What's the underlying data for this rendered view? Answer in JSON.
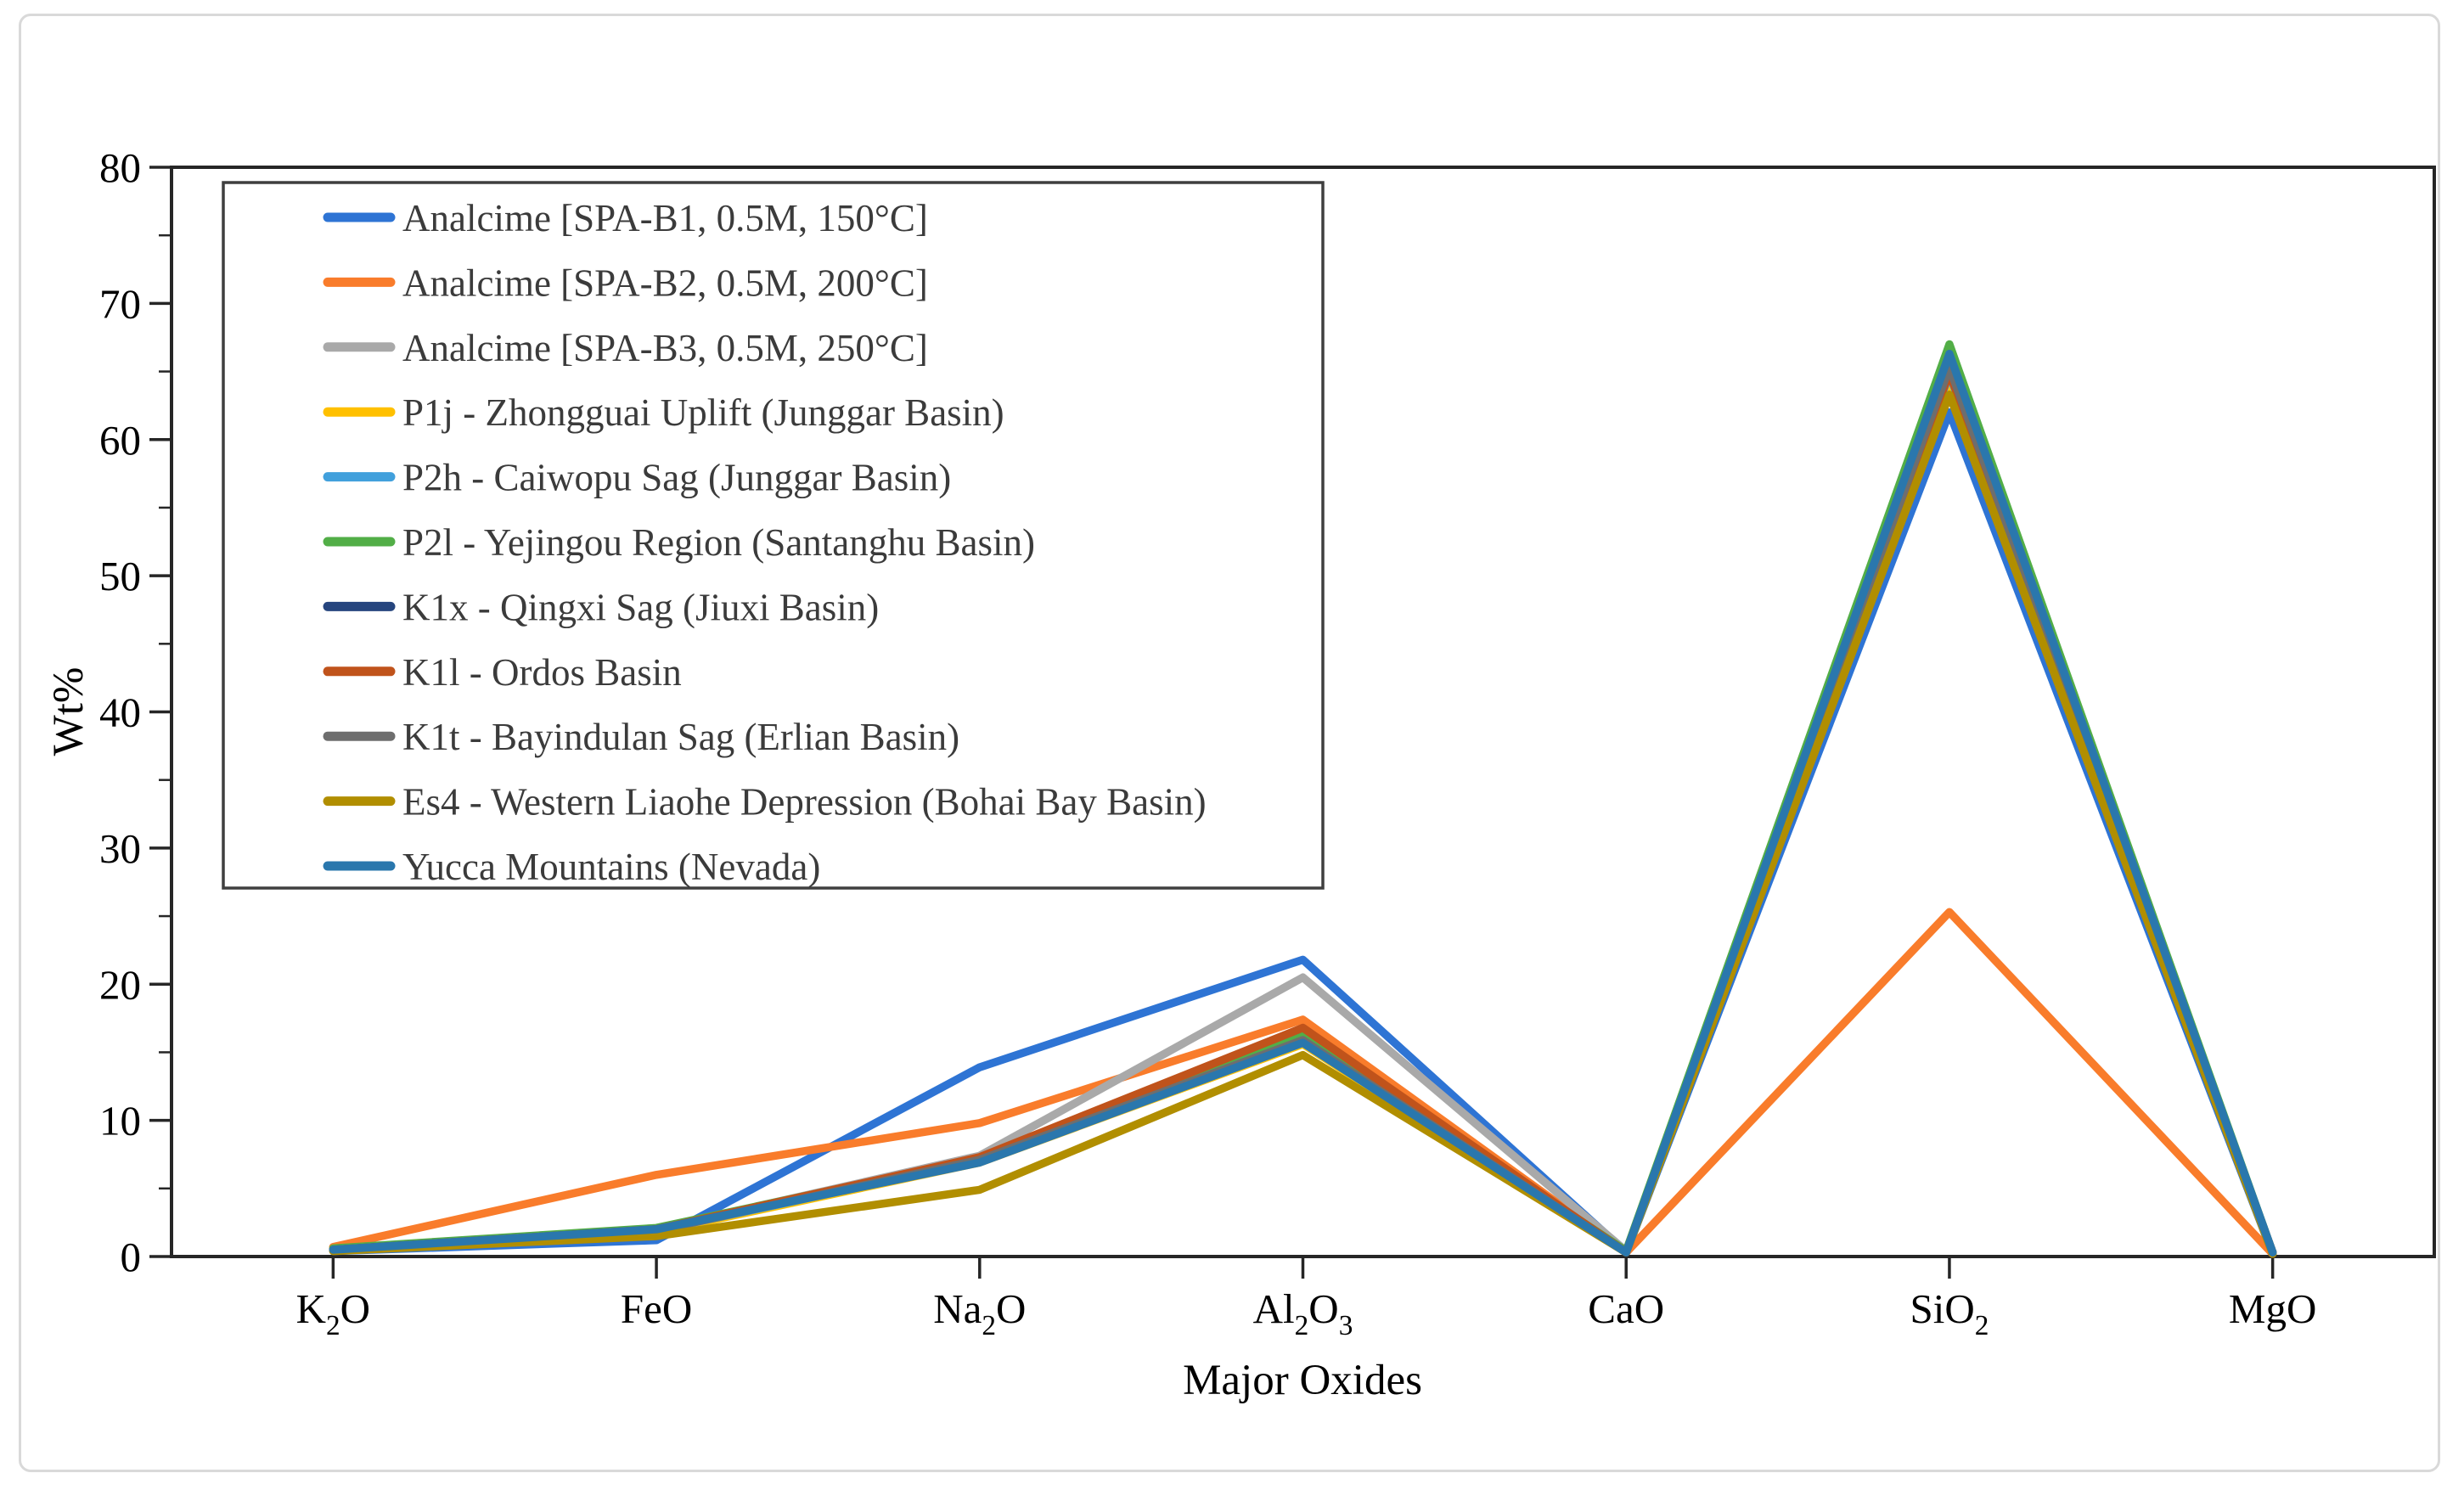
{
  "figure": {
    "background": "#ffffff",
    "border_color": "#d9d9d9"
  },
  "chart_data": {
    "type": "line",
    "title": "",
    "xlabel": "Major Oxides",
    "ylabel": "Wt%",
    "ylim": [
      0,
      80
    ],
    "yticks": [
      0,
      10,
      20,
      30,
      40,
      50,
      60,
      70,
      80
    ],
    "minor_tick_step": 5,
    "grid": false,
    "legend_position": "upper-left-inside",
    "categories": [
      "K₂O",
      "FeO",
      "Na₂O",
      "Al₂O₃",
      "CaO",
      "SiO₂",
      "MgO"
    ],
    "series": [
      {
        "name": "Analcime [SPA-B1, 0.5M, 150°C]",
        "color": "#2e74d4",
        "values": [
          0.4,
          1.2,
          13.9,
          21.8,
          0.3,
          62.0,
          0.2
        ]
      },
      {
        "name": "Analcime [SPA-B2, 0.5M, 200°C]",
        "color": "#f97c2b",
        "values": [
          0.7,
          6.0,
          9.8,
          17.4,
          0.3,
          25.3,
          0.2
        ]
      },
      {
        "name": "Analcime [SPA-B3, 0.5M, 250°C]",
        "color": "#a9a9a9",
        "values": [
          0.5,
          2.0,
          7.4,
          20.5,
          0.4,
          65.0,
          0.3
        ]
      },
      {
        "name": "P1j - Zhongguai Uplift (Junggar Basin)",
        "color": "#ffc000",
        "values": [
          0.5,
          1.8,
          6.9,
          15.6,
          0.3,
          63.8,
          0.3
        ]
      },
      {
        "name": "P2h - Caiwopu Sag (Junggar Basin)",
        "color": "#41a0dc",
        "values": [
          0.5,
          1.9,
          7.0,
          15.7,
          0.3,
          64.8,
          0.3
        ]
      },
      {
        "name": "P2l - Yejingou Region (Santanghu Basin)",
        "color": "#52ae47",
        "values": [
          0.6,
          2.1,
          7.2,
          16.2,
          0.4,
          67.0,
          0.3
        ]
      },
      {
        "name": "K1x - Qingxi Sag (Jiuxi Basin)",
        "color": "#26457e",
        "values": [
          0.5,
          2.0,
          7.0,
          15.8,
          0.3,
          66.0,
          0.3
        ]
      },
      {
        "name": "K1l - Ordos Basin",
        "color": "#c0531b",
        "values": [
          0.5,
          2.0,
          7.3,
          16.8,
          0.3,
          64.9,
          0.3
        ]
      },
      {
        "name": "K1t - Bayindulan Sag (Erlian Basin)",
        "color": "#6e6e6e",
        "values": [
          0.5,
          1.9,
          7.1,
          15.9,
          0.3,
          65.3,
          0.3
        ]
      },
      {
        "name": "Es4 - Western Liaohe Depression (Bohai Bay Basin)",
        "color": "#b18e00",
        "values": [
          0.4,
          1.5,
          4.9,
          14.8,
          0.3,
          63.3,
          0.2
        ]
      },
      {
        "name": "Yucca Mountains (Nevada)",
        "color": "#2a77ad",
        "values": [
          0.5,
          2.0,
          6.9,
          15.7,
          0.3,
          66.3,
          0.3
        ]
      }
    ]
  }
}
